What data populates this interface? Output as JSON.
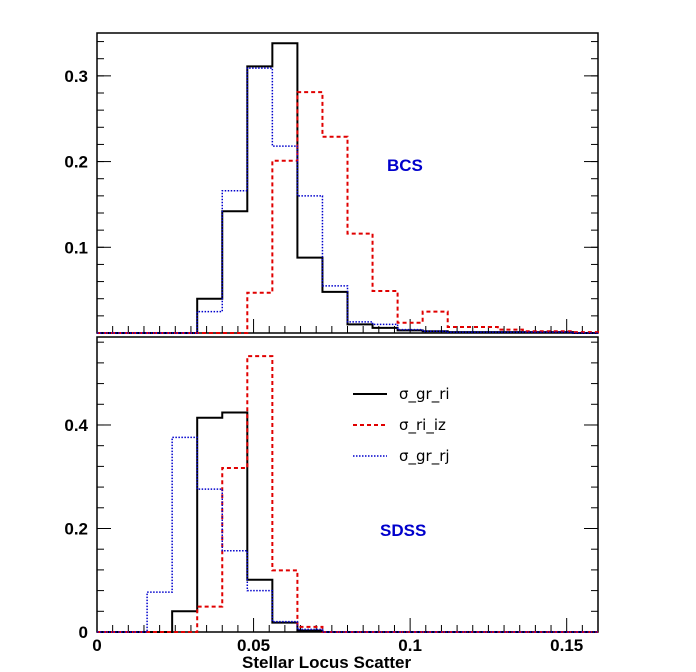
{
  "chart_data": {
    "type": "step-histogram",
    "xlabel": "Stellar Locus Scatter",
    "xlim": [
      0,
      0.16
    ],
    "x_ticks": [
      0,
      0.05,
      0.1,
      0.15
    ],
    "x_tick_labels": [
      "0",
      "0.05",
      "0.1",
      "0.15"
    ],
    "legend": [
      {
        "name": "σ_gr_ri",
        "color": "#000000",
        "style": "solid"
      },
      {
        "name": "σ_ri_iz",
        "color": "#e00000",
        "style": "dashed"
      },
      {
        "name": "σ_gr_rj",
        "color": "#0000cc",
        "style": "dotted"
      }
    ],
    "panels": [
      {
        "label": "BCS",
        "label_color": "#0000cc",
        "ylim": [
          0,
          0.35
        ],
        "y_ticks": [
          0.1,
          0.2,
          0.3
        ],
        "y_tick_labels": [
          "0.1",
          "0.2",
          "0.3"
        ],
        "bins": [
          0.032,
          0.04,
          0.048,
          0.056,
          0.064,
          0.072,
          0.08,
          0.088,
          0.096,
          0.104,
          0.112,
          0.12,
          0.128,
          0.136,
          0.144,
          0.152,
          0.16
        ],
        "series": [
          {
            "name": "σ_gr_ri",
            "values": [
              0.04,
              0.142,
              0.311,
              0.338,
              0.088,
              0.048,
              0.01,
              0.006,
              0.003,
              0.002,
              0.001,
              0.001,
              0.001,
              0.001,
              0.001,
              0.0
            ]
          },
          {
            "name": "σ_ri_iz",
            "values": [
              0.0,
              0.0,
              0.047,
              0.201,
              0.281,
              0.229,
              0.116,
              0.049,
              0.012,
              0.025,
              0.007,
              0.007,
              0.004,
              0.002,
              0.002,
              0.001
            ]
          },
          {
            "name": "σ_gr_rj",
            "values": [
              0.025,
              0.166,
              0.309,
              0.218,
              0.16,
              0.055,
              0.013,
              0.01,
              0.004,
              0.002,
              0.001,
              0.001,
              0.001,
              0.001,
              0.001,
              0.0
            ]
          }
        ]
      },
      {
        "label": "SDSS",
        "label_color": "#0000cc",
        "ylim": [
          0,
          0.57
        ],
        "y_ticks": [
          0,
          0.2,
          0.4
        ],
        "y_tick_labels": [
          "0",
          "0.2",
          "0.4"
        ],
        "bins": [
          0.016,
          0.024,
          0.032,
          0.04,
          0.048,
          0.056,
          0.064,
          0.072
        ],
        "series": [
          {
            "name": "σ_gr_ri",
            "values": [
              0.0,
              0.04,
              0.414,
              0.424,
              0.101,
              0.018,
              0.003
            ]
          },
          {
            "name": "σ_ri_iz",
            "values": [
              0.0,
              0.0,
              0.049,
              0.317,
              0.533,
              0.119,
              0.01
            ]
          },
          {
            "name": "σ_gr_rj",
            "values": [
              0.077,
              0.376,
              0.276,
              0.157,
              0.08,
              0.02,
              0.005
            ]
          }
        ]
      }
    ]
  }
}
